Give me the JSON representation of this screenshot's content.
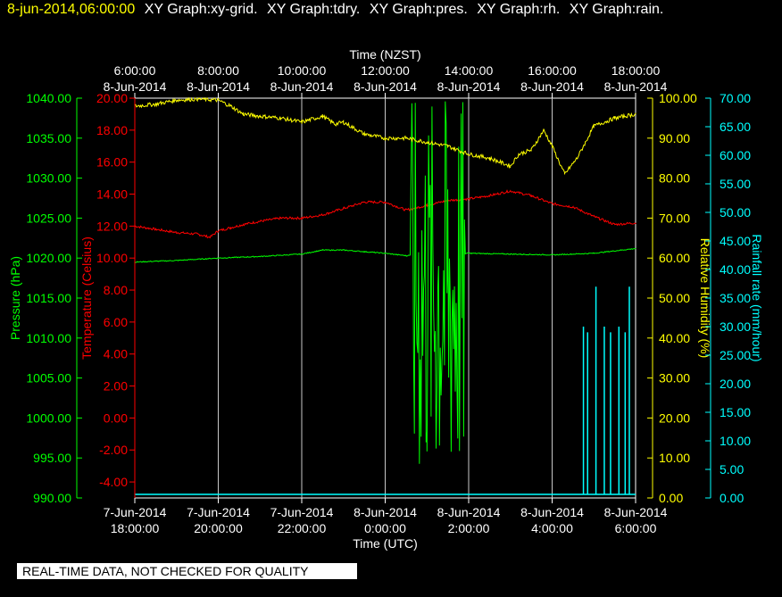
{
  "header": {
    "timestamp": "8-jun-2014,06:00:00",
    "items": [
      "XY Graph:xy-grid.",
      "XY Graph:tdry.",
      "XY Graph:pres.",
      "XY Graph:rh.",
      "XY Graph:rain."
    ]
  },
  "disclaimer": "REAL-TIME DATA, NOT CHECKED FOR QUALITY",
  "colors": {
    "pressure": "#00ff00",
    "temperature": "#ff0000",
    "humidity": "#ffff00",
    "rain": "#00ffff",
    "grid": "#c8c8c8",
    "axis": "#ffffff"
  },
  "chart_data": {
    "type": "line",
    "top_axis": {
      "title": "Time (NZST)",
      "ticks": [
        {
          "time": "6:00:00",
          "date": "8-Jun-2014"
        },
        {
          "time": "8:00:00",
          "date": "8-Jun-2014"
        },
        {
          "time": "10:00:00",
          "date": "8-Jun-2014"
        },
        {
          "time": "12:00:00",
          "date": "8-Jun-2014"
        },
        {
          "time": "14:00:00",
          "date": "8-Jun-2014"
        },
        {
          "time": "16:00:00",
          "date": "8-Jun-2014"
        },
        {
          "time": "18:00:00",
          "date": "8-Jun-2014"
        }
      ]
    },
    "bottom_axis": {
      "title": "Time (UTC)",
      "ticks": [
        {
          "date": "7-Jun-2014",
          "time": "18:00:00"
        },
        {
          "date": "7-Jun-2014",
          "time": "20:00:00"
        },
        {
          "date": "7-Jun-2014",
          "time": "22:00:00"
        },
        {
          "date": "8-Jun-2014",
          "time": "0:00:00"
        },
        {
          "date": "8-Jun-2014",
          "time": "2:00:00"
        },
        {
          "date": "8-Jun-2014",
          "time": "4:00:00"
        },
        {
          "date": "8-Jun-2014",
          "time": "6:00:00"
        }
      ]
    },
    "x_range_hours_nzst": [
      6,
      18
    ],
    "pressure_axis": {
      "label": "Pressure (hPa)",
      "range": [
        990,
        1040
      ],
      "ticks": [
        "990.00",
        "995.00",
        "1000.00",
        "1005.00",
        "1010.00",
        "1015.00",
        "1020.00",
        "1025.00",
        "1030.00",
        "1035.00",
        "1040.00"
      ]
    },
    "temperature_axis": {
      "label": "Temperature (Celsius)",
      "range": [
        -5,
        20
      ],
      "ticks": [
        "-4.00",
        "-2.00",
        "0.00",
        "2.00",
        "4.00",
        "6.00",
        "8.00",
        "10.00",
        "12.00",
        "14.00",
        "16.00",
        "18.00",
        "20.00"
      ]
    },
    "humidity_axis": {
      "label": "Relative Humidity (%)",
      "range": [
        0,
        100
      ],
      "ticks": [
        "0.00",
        "10.00",
        "20.00",
        "30.00",
        "40.00",
        "50.00",
        "60.00",
        "70.00",
        "80.00",
        "90.00",
        "100.00"
      ]
    },
    "rain_axis": {
      "label": "Rainfall rate (mm/hour)",
      "range": [
        0,
        70
      ],
      "ticks": [
        "0.00",
        "5.00",
        "10.00",
        "15.00",
        "20.00",
        "25.00",
        "30.00",
        "35.00",
        "40.00",
        "45.00",
        "50.00",
        "55.00",
        "60.00",
        "65.00",
        "70.00"
      ]
    },
    "series": [
      {
        "name": "tdry",
        "axis": "temperature",
        "x": [
          6.0,
          6.5,
          7.0,
          7.5,
          7.8,
          8.0,
          8.3,
          8.6,
          9.0,
          9.5,
          10.0,
          10.5,
          11.0,
          11.5,
          12.0,
          12.5,
          13.0,
          13.5,
          14.0,
          14.5,
          15.0,
          15.5,
          16.0,
          16.5,
          17.0,
          17.5,
          18.0
        ],
        "y": [
          12.0,
          11.8,
          11.6,
          11.5,
          11.3,
          11.7,
          11.9,
          12.1,
          12.3,
          12.5,
          12.5,
          12.7,
          13.1,
          13.5,
          13.5,
          13.0,
          13.3,
          13.6,
          13.7,
          13.9,
          14.2,
          13.9,
          13.4,
          13.2,
          12.6,
          12.1,
          12.2
        ]
      },
      {
        "name": "pres",
        "axis": "pressure",
        "x": [
          6.0,
          7.0,
          8.0,
          9.0,
          10.0,
          10.5,
          11.0,
          11.5,
          12.0,
          12.5,
          13.0,
          13.5,
          14.0,
          15.0,
          16.0,
          17.0,
          18.0
        ],
        "y": [
          1019.5,
          1019.7,
          1020.0,
          1020.2,
          1020.5,
          1021.0,
          1021.0,
          1020.8,
          1020.6,
          1020.3,
          1020.5,
          1020.4,
          1020.6,
          1020.5,
          1020.4,
          1020.6,
          1021.2
        ]
      },
      {
        "name": "rh",
        "axis": "humidity",
        "x": [
          6.0,
          6.5,
          7.0,
          7.5,
          8.0,
          8.3,
          8.6,
          9.0,
          9.5,
          10.0,
          10.5,
          10.8,
          11.0,
          11.5,
          12.0,
          12.5,
          13.0,
          13.5,
          14.0,
          14.5,
          15.0,
          15.2,
          15.5,
          15.8,
          16.0,
          16.3,
          16.6,
          16.8,
          17.0,
          17.5,
          18.0
        ],
        "y": [
          98,
          98.5,
          99.5,
          99.8,
          99.5,
          98,
          96,
          95.5,
          95,
          94,
          95.5,
          93.5,
          94,
          91,
          90,
          90,
          89,
          88,
          86,
          85,
          83,
          86,
          87,
          92,
          88,
          81,
          85,
          89,
          93,
          95,
          96
        ]
      },
      {
        "name": "rain",
        "axis": "rain",
        "x": [
          16.75,
          16.85,
          17.05,
          17.25,
          17.4,
          17.6,
          17.75,
          17.85
        ],
        "y": [
          30,
          29,
          37,
          30,
          29,
          30,
          29,
          37
        ]
      }
    ],
    "pressure_gap": {
      "x_range": [
        12.6,
        13.9
      ],
      "y_range": [
        990,
        1040
      ]
    }
  }
}
